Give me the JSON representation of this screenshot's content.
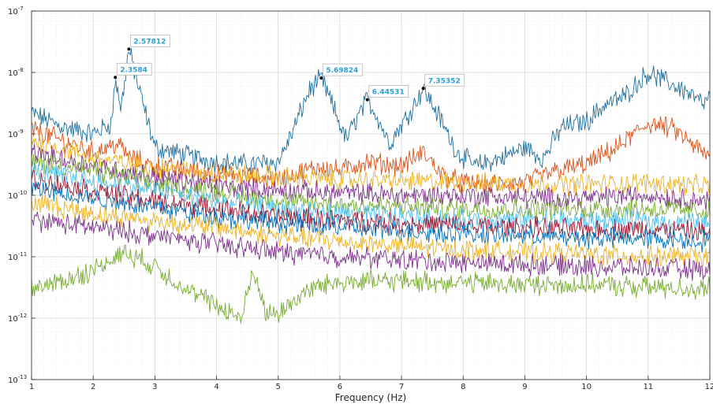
{
  "chart_data": {
    "type": "line",
    "title": "",
    "xlabel": "Frequency (Hz)",
    "ylabel": "",
    "xlim": [
      1,
      12
    ],
    "ylim": [
      1e-13,
      1e-07
    ],
    "yscale": "log",
    "grid": true,
    "x_ticks": [
      "1",
      "2",
      "3",
      "4",
      "5",
      "6",
      "7",
      "8",
      "9",
      "10",
      "11",
      "12"
    ],
    "y_ticks": [
      {
        "base": "10",
        "exp": "-13"
      },
      {
        "base": "10",
        "exp": "-12"
      },
      {
        "base": "10",
        "exp": "-11"
      },
      {
        "base": "10",
        "exp": "-10"
      },
      {
        "base": "10",
        "exp": "-9"
      },
      {
        "base": "10",
        "exp": "-8"
      },
      {
        "base": "10",
        "exp": "-7"
      }
    ],
    "series": [
      {
        "color": "#1f6f9f",
        "x": [
          1,
          1.5,
          2,
          2.3,
          2.3584,
          2.45,
          2.57812,
          2.75,
          3,
          3.5,
          4,
          4.5,
          5,
          5.2,
          5.5,
          5.69824,
          5.9,
          6.1,
          6.3,
          6.44531,
          6.6,
          6.8,
          7.1,
          7.35352,
          7.6,
          7.9,
          8.2,
          8.6,
          9,
          9.3,
          9.6,
          10,
          10.3,
          10.6,
          11,
          11.3,
          11.6,
          11.9,
          12
        ],
        "y": [
          2.2e-09,
          1.3e-09,
          1e-09,
          1.5e-09,
          8.3e-09,
          2.5e-09,
          2.4e-08,
          5e-09,
          6e-10,
          4.5e-10,
          3.5e-10,
          3.2e-10,
          3.5e-10,
          9e-10,
          5e-09,
          8.1e-09,
          2.6e-09,
          8e-10,
          2e-09,
          3.6e-09,
          2e-09,
          7e-10,
          2e-09,
          5.5e-09,
          2e-09,
          5e-10,
          3e-10,
          4e-10,
          6e-10,
          4e-10,
          1.3e-09,
          1.6e-09,
          3e-09,
          4e-09,
          1e-08,
          7e-09,
          5e-09,
          3e-09,
          4e-09
        ]
      },
      {
        "color": "#d95319",
        "x": [
          1,
          2,
          2.4,
          2.6,
          3,
          4,
          5,
          5.7,
          6,
          6.4,
          7,
          7.35,
          7.7,
          8,
          8.5,
          9,
          9.5,
          10,
          10.5,
          11,
          11.4,
          12
        ],
        "y": [
          1.2e-09,
          5e-10,
          7e-10,
          4e-10,
          3e-10,
          2.2e-10,
          1.8e-10,
          3e-10,
          2.5e-10,
          3.5e-10,
          3e-10,
          5e-10,
          2e-10,
          1.6e-10,
          1.5e-10,
          1.6e-10,
          2.5e-10,
          3.2e-10,
          6e-10,
          1.5e-09,
          1.2e-09,
          4e-10
        ]
      },
      {
        "color": "#edb120",
        "x": [
          1,
          2,
          3,
          4,
          5,
          6,
          7,
          8,
          9,
          10,
          11,
          12
        ],
        "y": [
          8e-10,
          4e-10,
          2.8e-10,
          2.2e-10,
          2e-10,
          1.8e-10,
          1.7e-10,
          1.6e-10,
          1.5e-10,
          1.5e-10,
          1.6e-10,
          1.4e-10
        ]
      },
      {
        "color": "#7e2f8e",
        "x": [
          1,
          2,
          3,
          4,
          5,
          6,
          7,
          8,
          9,
          10,
          11,
          12
        ],
        "y": [
          5e-10,
          3e-10,
          2e-10,
          1.4e-10,
          1.2e-10,
          1.1e-10,
          1e-10,
          1e-10,
          9e-11,
          9e-11,
          1e-10,
          8e-11
        ]
      },
      {
        "color": "#77ac30",
        "x": [
          1,
          2,
          3,
          4,
          5,
          6,
          7,
          8,
          9,
          10,
          11,
          12
        ],
        "y": [
          3.5e-10,
          2.5e-10,
          1.5e-10,
          1.1e-10,
          8e-11,
          7e-11,
          6.5e-11,
          6e-11,
          6e-11,
          6e-11,
          6e-11,
          5.5e-11
        ]
      },
      {
        "color": "#4dbeee",
        "x": [
          1,
          2,
          3,
          4,
          5,
          6,
          7,
          8,
          9,
          10,
          11,
          12
        ],
        "y": [
          2.5e-10,
          1.7e-10,
          1.2e-10,
          8e-11,
          6e-11,
          5e-11,
          4.5e-11,
          4e-11,
          4e-11,
          3.8e-11,
          3.8e-11,
          3.5e-11
        ]
      },
      {
        "color": "#a2142f",
        "x": [
          1,
          2,
          3,
          4,
          5,
          6,
          7,
          8,
          9,
          10,
          11,
          12
        ],
        "y": [
          1.8e-10,
          1.2e-10,
          8e-11,
          6e-11,
          4.5e-11,
          4e-11,
          3.5e-11,
          3.2e-11,
          3e-11,
          2.8e-11,
          2.8e-11,
          2.5e-11
        ]
      },
      {
        "color": "#0072bd",
        "x": [
          1,
          2,
          3,
          4,
          5,
          6,
          7,
          8,
          9,
          10,
          11,
          12
        ],
        "y": [
          1.3e-10,
          9e-11,
          6.5e-11,
          4.5e-11,
          3.5e-11,
          3e-11,
          2.6e-11,
          2.4e-11,
          2.2e-11,
          2e-11,
          2e-11,
          1.8e-11
        ]
      },
      {
        "color": "#edb120",
        "x": [
          1,
          2,
          3,
          4,
          5,
          6,
          7,
          8,
          9,
          10,
          11,
          12
        ],
        "y": [
          8e-11,
          5e-11,
          3.8e-11,
          3e-11,
          2.2e-11,
          1.8e-11,
          1.5e-11,
          1.3e-11,
          1.2e-11,
          1.1e-11,
          1e-11,
          1e-11
        ]
      },
      {
        "color": "#7e2f8e",
        "x": [
          1,
          2,
          3,
          4,
          5,
          6,
          7,
          8,
          9,
          10,
          11,
          12
        ],
        "y": [
          4e-11,
          3e-11,
          2.2e-11,
          1.6e-11,
          1.2e-11,
          1e-11,
          9e-12,
          8e-12,
          7.5e-12,
          7e-12,
          6.5e-12,
          6e-12
        ]
      },
      {
        "color": "#77ac30",
        "x": [
          1,
          1.5,
          2,
          2.5,
          3,
          3.5,
          4,
          4.4,
          4.6,
          4.8,
          5,
          5.5,
          6,
          7,
          8,
          9,
          10,
          11,
          12
        ],
        "y": [
          3e-12,
          4e-12,
          6e-12,
          1.2e-11,
          7e-12,
          3e-12,
          1.6e-12,
          1e-12,
          6e-12,
          1.2e-12,
          1.2e-12,
          3e-12,
          4e-12,
          4e-12,
          3.8e-12,
          3.5e-12,
          3.5e-12,
          3.2e-12,
          3e-12
        ]
      }
    ],
    "annotations": [
      {
        "label": "2.3584",
        "x": 2.3584,
        "y": 8.3e-09
      },
      {
        "label": "2.57812",
        "x": 2.57812,
        "y": 2.4e-08
      },
      {
        "label": "5.69824",
        "x": 5.69824,
        "y": 8.1e-09
      },
      {
        "label": "6.44531",
        "x": 6.44531,
        "y": 3.6e-09
      },
      {
        "label": "7.35352",
        "x": 7.35352,
        "y": 5.5e-09
      }
    ]
  }
}
